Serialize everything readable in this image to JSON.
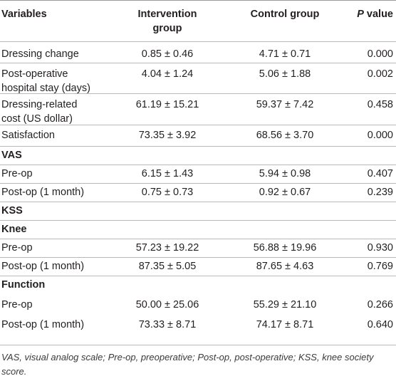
{
  "table": {
    "headers": {
      "variables": "Variables",
      "intervention_line1": "Intervention",
      "intervention_line2": "group",
      "control": "Control group",
      "p_prefix": "P",
      "p_suffix": " value"
    },
    "rows": [
      {
        "label": "Dressing change",
        "intervention": "0.85 ± 0.46",
        "control": "4.71 ± 0.71",
        "p": "0.000"
      },
      {
        "label": "Post-operative",
        "label2": "hospital stay (days)",
        "intervention": "4.04 ± 1.24",
        "control": "5.06 ± 1.88",
        "p": "0.002"
      },
      {
        "label": "Dressing-related",
        "label2": "cost (US dollar)",
        "intervention": "61.19 ± 15.21",
        "control": "59.37 ± 7.42",
        "p": "0.458"
      },
      {
        "label": "Satisfaction",
        "intervention": "73.35 ± 3.92",
        "control": "68.56 ± 3.70",
        "p": "0.000"
      },
      {
        "label": "VAS"
      },
      {
        "label": "Pre-op",
        "intervention": "6.15 ± 1.43",
        "control": "5.94 ± 0.98",
        "p": "0.407"
      },
      {
        "label": "Post-op (1 month)",
        "intervention": "0.75 ± 0.73",
        "control": "0.92 ± 0.67",
        "p": "0.239"
      },
      {
        "label": "KSS"
      },
      {
        "label": "Knee"
      },
      {
        "label": "Pre-op",
        "intervention": "57.23 ± 19.22",
        "control": "56.88 ± 19.96",
        "p": "0.930"
      },
      {
        "label": "Post-op (1 month)",
        "intervention": "87.35 ± 5.05",
        "control": "87.65 ± 4.63",
        "p": "0.769"
      },
      {
        "label": "Function"
      },
      {
        "label": "Pre-op",
        "intervention": "50.00 ± 25.06",
        "control": "55.29 ± 21.10",
        "p": "0.266"
      },
      {
        "label": "Post-op (1 month)",
        "intervention": "73.33 ± 8.71",
        "control": "74.17 ± 8.71",
        "p": "0.640"
      }
    ]
  },
  "footnote": "VAS, visual analog scale; Pre-op, preoperative; Post-op, post-operative; KSS, knee society score."
}
